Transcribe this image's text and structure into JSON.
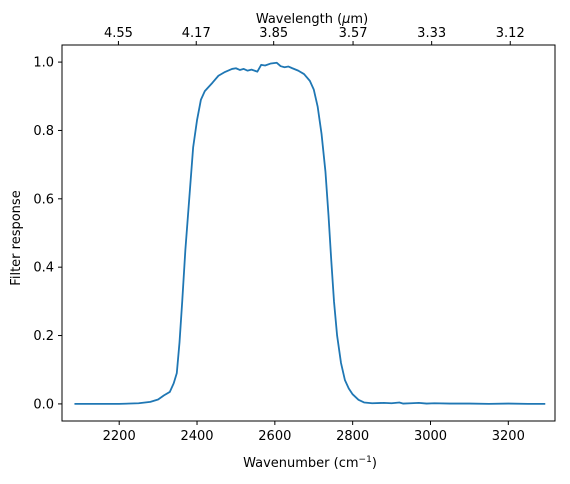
{
  "chart_data": {
    "type": "line",
    "xlabel_main": "Wavenumber (cm",
    "xlabel_sup": "−1",
    "xlabel_close": ")",
    "ylabel": "Filter response",
    "top_xlabel_prefix": "Wavelength (",
    "top_xlabel_mu": "μ",
    "top_xlabel_suffix": "m)",
    "xlim": [
      2053,
      3320
    ],
    "ylim": [
      -0.05,
      1.05
    ],
    "x_ticks": [
      2200,
      2400,
      2600,
      2800,
      3000,
      3200
    ],
    "y_ticks": [
      0.0,
      0.2,
      0.4,
      0.6,
      0.8,
      1.0
    ],
    "y_tick_labels": [
      "0.0",
      "0.2",
      "0.4",
      "0.6",
      "0.8",
      "1.0"
    ],
    "top_ticks": [
      {
        "label": "4.55",
        "wavenumber": 2198
      },
      {
        "label": "4.17",
        "wavenumber": 2398
      },
      {
        "label": "3.85",
        "wavenumber": 2597
      },
      {
        "label": "3.57",
        "wavenumber": 2801
      },
      {
        "label": "3.33",
        "wavenumber": 3003
      },
      {
        "label": "3.12",
        "wavenumber": 3205
      }
    ],
    "line_color": "#1f77b4",
    "grid": false,
    "series": [
      {
        "x": [
          2085,
          2150,
          2200,
          2250,
          2280,
          2300,
          2315,
          2330,
          2340,
          2348,
          2355,
          2362,
          2370,
          2380,
          2390,
          2400,
          2410,
          2420,
          2440,
          2455,
          2470,
          2490,
          2500,
          2510,
          2520,
          2530,
          2540,
          2555,
          2565,
          2575,
          2590,
          2605,
          2615,
          2625,
          2635,
          2645,
          2660,
          2675,
          2690,
          2700,
          2710,
          2720,
          2730,
          2738,
          2745,
          2752,
          2760,
          2770,
          2780,
          2790,
          2800,
          2815,
          2830,
          2850,
          2880,
          2900,
          2920,
          2930,
          2950,
          2970,
          2990,
          3010,
          3050,
          3100,
          3150,
          3200,
          3250,
          3295
        ],
        "y": [
          0.0,
          0.0,
          0.0,
          0.002,
          0.006,
          0.013,
          0.025,
          0.035,
          0.06,
          0.09,
          0.18,
          0.3,
          0.45,
          0.6,
          0.75,
          0.83,
          0.89,
          0.915,
          0.94,
          0.96,
          0.97,
          0.98,
          0.982,
          0.977,
          0.98,
          0.975,
          0.978,
          0.972,
          0.992,
          0.99,
          0.996,
          0.998,
          0.988,
          0.985,
          0.987,
          0.982,
          0.975,
          0.965,
          0.945,
          0.92,
          0.87,
          0.79,
          0.68,
          0.55,
          0.42,
          0.3,
          0.2,
          0.12,
          0.07,
          0.045,
          0.028,
          0.012,
          0.004,
          0.002,
          0.003,
          0.002,
          0.004,
          0.001,
          0.002,
          0.003,
          0.001,
          0.002,
          0.001,
          0.001,
          0.0,
          0.001,
          0.0,
          0.0
        ]
      }
    ]
  }
}
